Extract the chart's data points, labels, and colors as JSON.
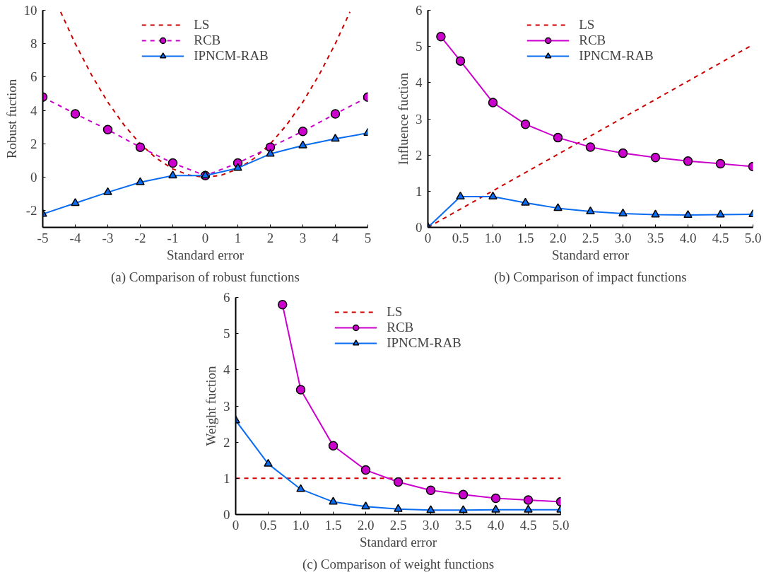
{
  "chart_data": [
    {
      "type": "line",
      "xlabel": "Standard error",
      "ylabel": "Robust fuction",
      "annotations": [
        "(a) Comparison of robust functions"
      ],
      "xlim": [
        -5,
        5
      ],
      "ylim": [
        -3,
        10
      ],
      "xticks": [
        -5,
        -4,
        -3,
        -2,
        -1,
        0,
        1,
        2,
        3,
        4,
        5
      ],
      "yticks": [
        -2,
        0,
        2,
        4,
        6,
        8,
        10
      ],
      "grid": false,
      "legend": "top",
      "series": [
        {
          "name": "LS",
          "color": "#cc0000",
          "line_style": "dashed",
          "marker": "none",
          "x": [
            -4.45,
            -4,
            -3.5,
            -3,
            -2.5,
            -2,
            -1.5,
            -1,
            -0.5,
            0,
            0.5,
            1,
            1.5,
            2,
            2.5,
            3,
            3.5,
            4,
            4.45
          ],
          "values": [
            9.9,
            8,
            6.13,
            4.5,
            3.13,
            2,
            1.13,
            0.5,
            0.13,
            0,
            0.13,
            0.5,
            1.13,
            2,
            3.13,
            4.5,
            6.13,
            8,
            9.9
          ]
        },
        {
          "name": "RCB",
          "color": "#cc00cc",
          "line_style": "dashed",
          "marker": "circle",
          "x": [
            -5,
            -4,
            -3,
            -2,
            -1,
            0,
            1,
            2,
            3,
            4,
            5
          ],
          "values": [
            4.8,
            3.8,
            2.85,
            1.8,
            0.85,
            0.1,
            0.85,
            1.8,
            2.75,
            3.8,
            4.8
          ]
        },
        {
          "name": "IPNCM-RAB",
          "color": "#0a6cf0",
          "line_style": "solid",
          "marker": "triangle",
          "x": [
            -5,
            -4,
            -3,
            -2,
            -1,
            0,
            1,
            2,
            3,
            4,
            5
          ],
          "values": [
            -2.2,
            -1.55,
            -0.9,
            -0.3,
            0.1,
            0.1,
            0.55,
            1.4,
            1.9,
            2.3,
            2.65
          ]
        }
      ]
    },
    {
      "type": "line",
      "xlabel": "Standard error",
      "ylabel": "Influence fuction",
      "annotations": [
        "(b) Comparison of impact functions"
      ],
      "xlim": [
        0,
        5
      ],
      "ylim": [
        0,
        6
      ],
      "xticks": [
        0,
        0.5,
        {
          "value": 1,
          "label": "1.0"
        },
        1.5,
        {
          "value": 2,
          "label": "2.0"
        },
        2.5,
        {
          "value": 3,
          "label": "3.0"
        },
        3.5,
        {
          "value": 4,
          "label": "4.0"
        },
        4.5,
        {
          "value": 5,
          "label": "5.0"
        }
      ],
      "yticks": [
        0,
        1,
        2,
        3,
        4,
        5,
        6
      ],
      "grid": false,
      "legend": "top",
      "series": [
        {
          "name": "LS",
          "color": "#cc0000",
          "line_style": "dashed",
          "marker": "none",
          "x": [
            0,
            5
          ],
          "values": [
            0,
            5.05
          ]
        },
        {
          "name": "RCB",
          "color": "#cc00cc",
          "line_style": "solid",
          "marker": "circle",
          "x": [
            0.2,
            0.5,
            1,
            1.5,
            2,
            2.5,
            3,
            3.5,
            4,
            4.5,
            5
          ],
          "values": [
            5.27,
            4.6,
            3.45,
            2.85,
            2.48,
            2.22,
            2.05,
            1.93,
            1.83,
            1.76,
            1.68
          ]
        },
        {
          "name": "IPNCM-RAB",
          "color": "#0a6cf0",
          "line_style": "solid",
          "marker": "triangle",
          "x": [
            0,
            0.5,
            1,
            1.5,
            2,
            2.5,
            3,
            3.5,
            4,
            4.5,
            5
          ],
          "values": [
            0,
            0.85,
            0.85,
            0.68,
            0.53,
            0.44,
            0.38,
            0.35,
            0.34,
            0.35,
            0.36
          ]
        }
      ]
    },
    {
      "type": "line",
      "xlabel": "Standard error",
      "ylabel": "Weight fuction",
      "annotations": [
        "(c) Comparison of weight functions"
      ],
      "xlim": [
        0,
        5
      ],
      "ylim": [
        0,
        6
      ],
      "xticks": [
        0,
        0.5,
        {
          "value": 1,
          "label": "1.0"
        },
        1.5,
        {
          "value": 2,
          "label": "2.0"
        },
        2.5,
        {
          "value": 3,
          "label": "3.0"
        },
        3.5,
        {
          "value": 4,
          "label": "4.0"
        },
        4.5,
        {
          "value": 5,
          "label": "5.0"
        }
      ],
      "yticks": [
        0,
        1,
        2,
        3,
        4,
        5,
        6
      ],
      "grid": false,
      "legend": "top",
      "series": [
        {
          "name": "LS",
          "color": "#cc0000",
          "line_style": "dashed",
          "marker": "none",
          "x": [
            0,
            5
          ],
          "values": [
            1,
            1
          ]
        },
        {
          "name": "RCB",
          "color": "#cc00cc",
          "line_style": "solid",
          "marker": "circle",
          "x": [
            0.72,
            1,
            1.5,
            2,
            2.5,
            3,
            3.5,
            4,
            4.5,
            5
          ],
          "values": [
            5.8,
            3.45,
            1.9,
            1.23,
            0.9,
            0.67,
            0.55,
            0.45,
            0.4,
            0.35
          ]
        },
        {
          "name": "IPNCM-RAB",
          "color": "#0a6cf0",
          "line_style": "solid",
          "marker": "triangle",
          "x": [
            0,
            0.5,
            1,
            1.5,
            2,
            2.5,
            3,
            3.5,
            4,
            4.5,
            5
          ],
          "values": [
            2.6,
            1.4,
            0.7,
            0.35,
            0.22,
            0.15,
            0.12,
            0.12,
            0.13,
            0.13,
            0.13
          ]
        }
      ]
    }
  ]
}
